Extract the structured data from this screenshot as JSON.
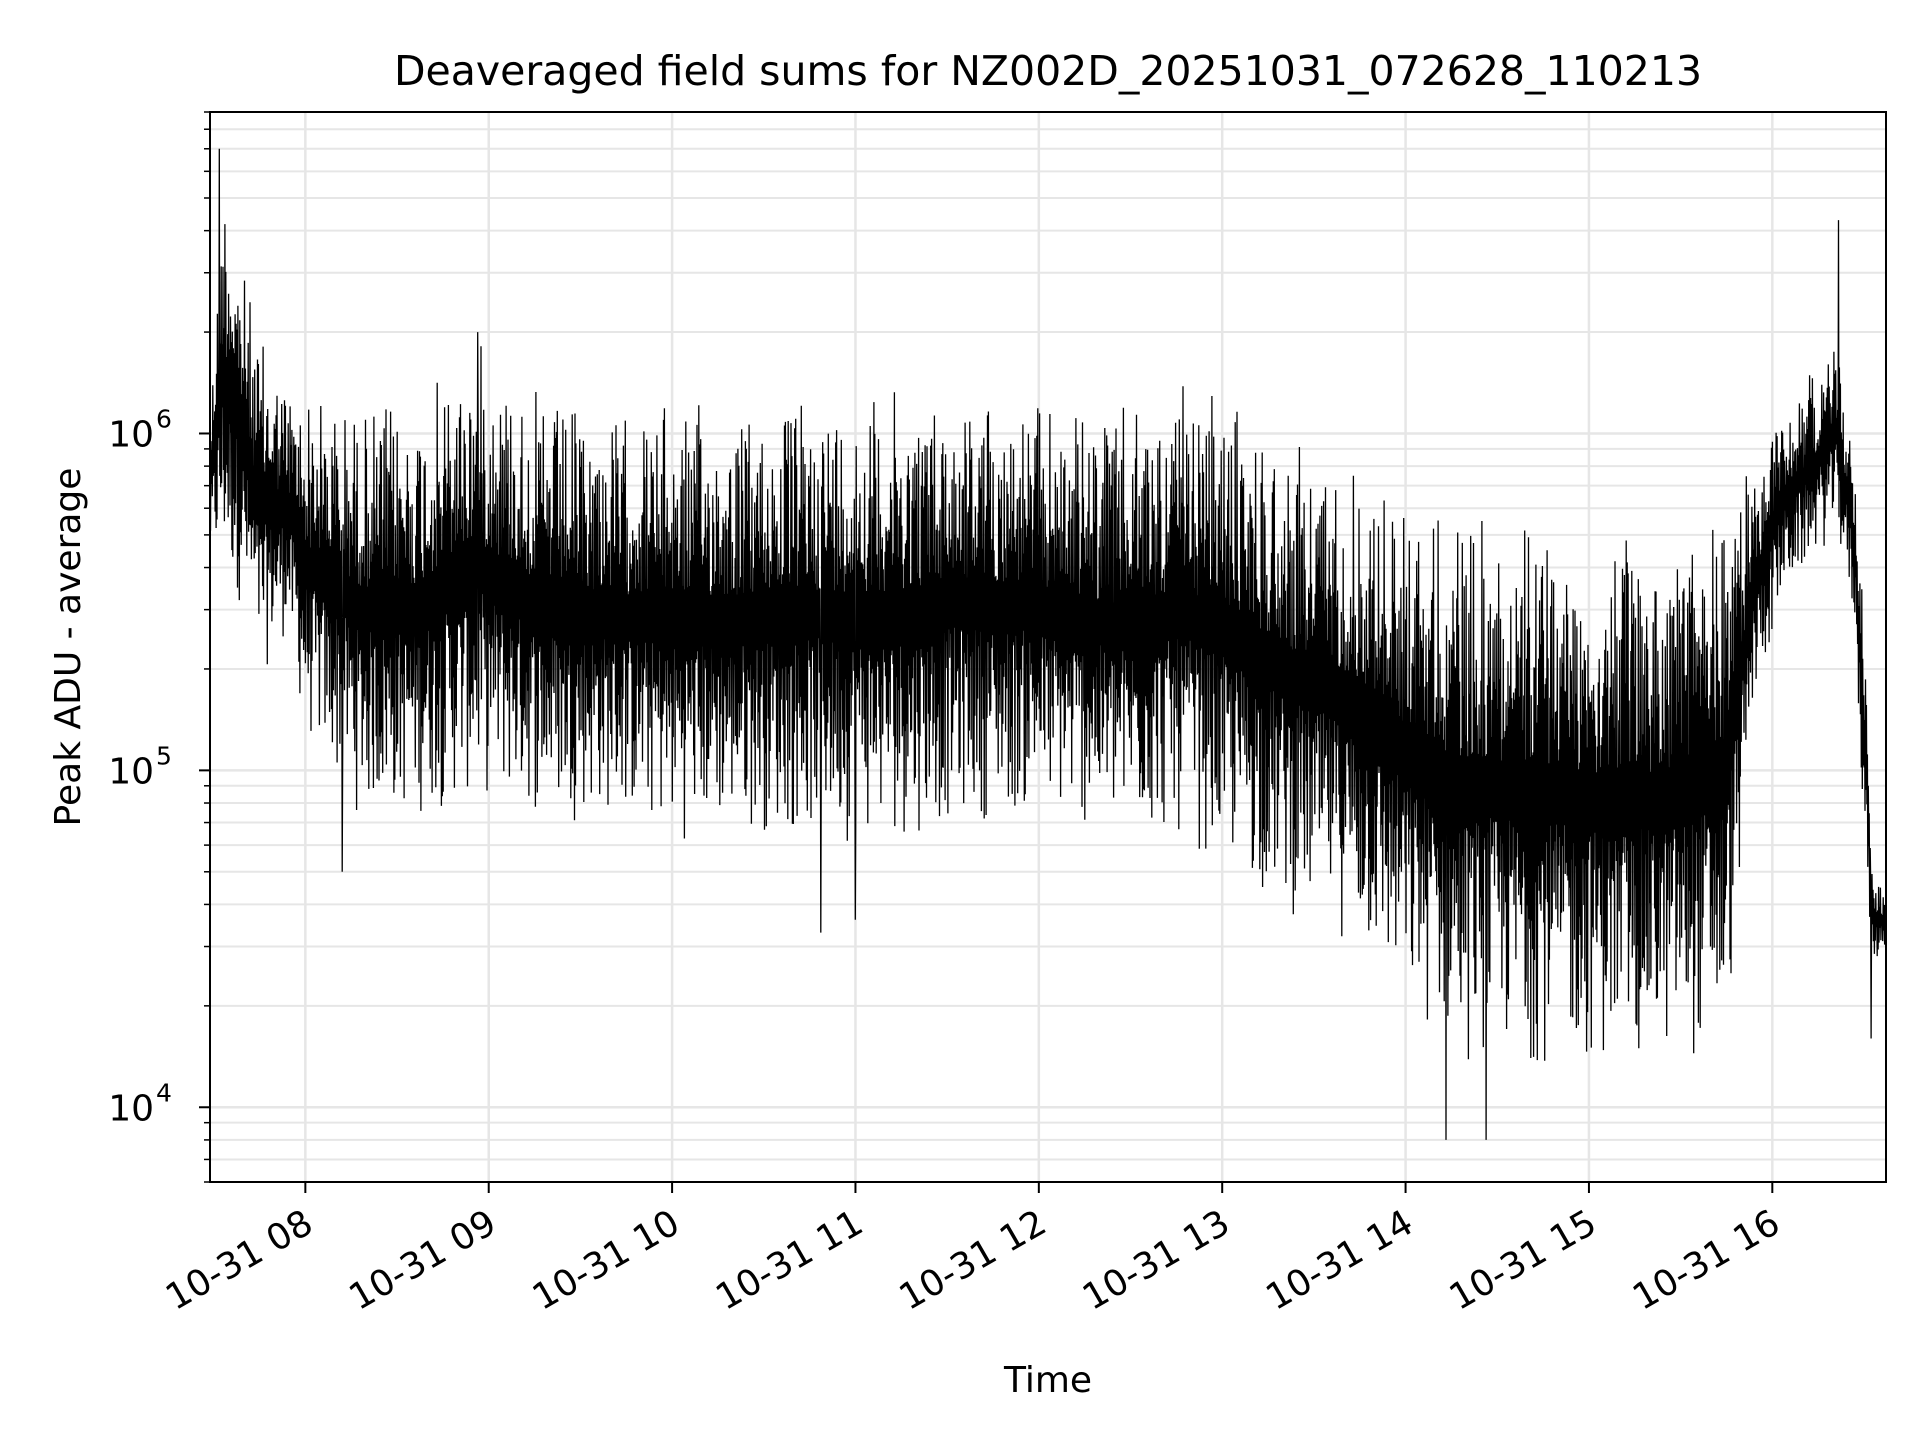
{
  "chart_data": {
    "type": "line",
    "title": "Deaveraged field sums for NZ002D_20251031_072628_110213",
    "xlabel": "Time",
    "ylabel": "Peak ADU - average",
    "yscale": "log",
    "ylim": [
      6000,
      9000000
    ],
    "xlim_hours": [
      7.48,
      16.62
    ],
    "x_ticks": [
      {
        "hour": 8,
        "label": "10-31 08"
      },
      {
        "hour": 9,
        "label": "10-31 09"
      },
      {
        "hour": 10,
        "label": "10-31 10"
      },
      {
        "hour": 11,
        "label": "10-31 11"
      },
      {
        "hour": 12,
        "label": "10-31 12"
      },
      {
        "hour": 13,
        "label": "10-31 13"
      },
      {
        "hour": 14,
        "label": "10-31 14"
      },
      {
        "hour": 15,
        "label": "10-31 15"
      },
      {
        "hour": 16,
        "label": "10-31 16"
      }
    ],
    "y_ticks": [
      {
        "value": 10000,
        "base": "10",
        "exp": "4"
      },
      {
        "value": 100000,
        "base": "10",
        "exp": "5"
      },
      {
        "value": 1000000,
        "base": "10",
        "exp": "6"
      }
    ],
    "grid": true,
    "line_color": "#000000",
    "series": [
      {
        "name": "Deaveraged field sums",
        "note": "high-frequency oscillating series; envelope (hour, low, high) read from gridlines",
        "envelope": [
          [
            7.48,
            400000,
            1200000
          ],
          [
            7.55,
            350000,
            7000000
          ],
          [
            7.65,
            300000,
            3500000
          ],
          [
            7.75,
            180000,
            2000000
          ],
          [
            7.9,
            250000,
            1500000
          ],
          [
            8.0,
            120000,
            1400000
          ],
          [
            8.3,
            70000,
            1300000
          ],
          [
            8.6,
            70000,
            1300000
          ],
          [
            8.95,
            80000,
            2000000
          ],
          [
            9.3,
            70000,
            1300000
          ],
          [
            9.7,
            70000,
            1200000
          ],
          [
            10.0,
            60000,
            1300000
          ],
          [
            10.4,
            65000,
            1200000
          ],
          [
            10.8,
            60000,
            1400000
          ],
          [
            11.2,
            60000,
            1400000
          ],
          [
            11.6,
            70000,
            1400000
          ],
          [
            12.0,
            70000,
            1300000
          ],
          [
            12.4,
            60000,
            1200000
          ],
          [
            12.8,
            60000,
            1400000
          ],
          [
            13.1,
            45000,
            1300000
          ],
          [
            13.4,
            35000,
            1000000
          ],
          [
            13.7,
            30000,
            900000
          ],
          [
            14.0,
            18000,
            700000
          ],
          [
            14.3,
            13000,
            600000
          ],
          [
            14.6,
            13000,
            600000
          ],
          [
            15.0,
            13000,
            500000
          ],
          [
            15.4,
            13000,
            500000
          ],
          [
            15.75,
            14000,
            700000
          ],
          [
            15.9,
            150000,
            800000
          ],
          [
            16.05,
            300000,
            1300000
          ],
          [
            16.2,
            400000,
            1500000
          ],
          [
            16.35,
            500000,
            2000000
          ],
          [
            16.45,
            250000,
            900000
          ],
          [
            16.5,
            60000,
            300000
          ],
          [
            16.55,
            25000,
            50000
          ],
          [
            16.62,
            30000,
            45000
          ]
        ],
        "spikes": [
          [
            7.53,
            7000000
          ],
          [
            8.94,
            2000000
          ],
          [
            16.36,
            4300000
          ],
          [
            14.22,
            8000
          ],
          [
            14.44,
            8000
          ],
          [
            10.81,
            33000
          ],
          [
            11.0,
            36000
          ],
          [
            8.2,
            50000
          ],
          [
            16.54,
            16000
          ]
        ]
      }
    ]
  }
}
